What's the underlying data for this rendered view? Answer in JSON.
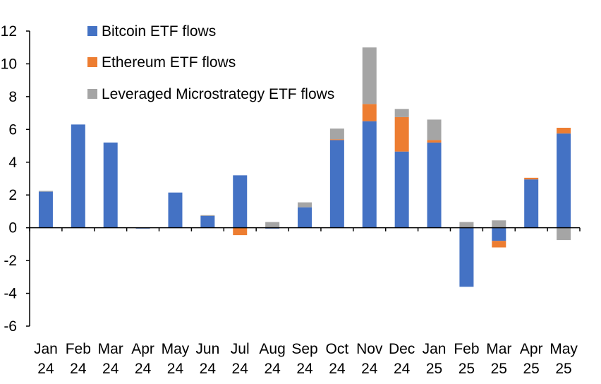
{
  "chart_data": {
    "type": "bar",
    "stacked": true,
    "title": "",
    "xlabel": "",
    "ylabel": "",
    "ylim": [
      -6,
      12
    ],
    "yticks": [
      -6,
      -4,
      -2,
      0,
      2,
      4,
      6,
      8,
      10,
      12
    ],
    "grid": false,
    "legend_position": "top-left",
    "categories": [
      [
        "Jan",
        "24"
      ],
      [
        "Feb",
        "24"
      ],
      [
        "Mar",
        "24"
      ],
      [
        "Apr",
        "24"
      ],
      [
        "May",
        "24"
      ],
      [
        "Jun",
        "24"
      ],
      [
        "Jul",
        "24"
      ],
      [
        "Aug",
        "24"
      ],
      [
        "Sep",
        "24"
      ],
      [
        "Oct",
        "24"
      ],
      [
        "Nov",
        "24"
      ],
      [
        "Dec",
        "24"
      ],
      [
        "Jan",
        "25"
      ],
      [
        "Feb",
        "25"
      ],
      [
        "Mar",
        "25"
      ],
      [
        "Apr",
        "25"
      ],
      [
        "May",
        "25"
      ]
    ],
    "series": [
      {
        "name": "Bitcoin ETF flows",
        "color": "#4472C4",
        "values": [
          2.2,
          6.3,
          5.2,
          -0.05,
          2.15,
          0.72,
          3.2,
          -0.05,
          1.25,
          5.35,
          6.5,
          4.65,
          5.2,
          -3.6,
          -0.8,
          2.95,
          5.75
        ]
      },
      {
        "name": "Ethereum ETF flows",
        "color": "#ED7D31",
        "values": [
          0,
          0,
          0,
          0,
          0,
          0,
          -0.45,
          0,
          0,
          0.05,
          1.05,
          2.1,
          0.15,
          0,
          -0.4,
          0.1,
          0.35
        ]
      },
      {
        "name": "Leveraged Microstrategy ETF flows",
        "color": "#A5A5A5",
        "values": [
          0.05,
          0,
          0,
          0,
          0,
          0.05,
          0,
          0.35,
          0.3,
          0.65,
          3.45,
          0.5,
          1.25,
          0.35,
          0.45,
          0,
          -0.75
        ]
      }
    ]
  }
}
